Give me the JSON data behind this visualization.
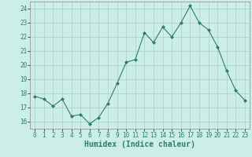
{
  "x": [
    0,
    1,
    2,
    3,
    4,
    5,
    6,
    7,
    8,
    9,
    10,
    11,
    12,
    13,
    14,
    15,
    16,
    17,
    18,
    19,
    20,
    21,
    22,
    23
  ],
  "y": [
    17.8,
    17.6,
    17.1,
    17.6,
    16.4,
    16.5,
    15.85,
    16.3,
    17.3,
    18.7,
    20.2,
    20.4,
    22.3,
    21.6,
    22.7,
    22.0,
    23.0,
    24.2,
    23.0,
    22.5,
    21.3,
    19.6,
    18.2,
    17.5
  ],
  "line_color": "#2e7d6e",
  "marker": "D",
  "marker_size": 2.0,
  "bg_color": "#cceee8",
  "grid_color": "#aacccc",
  "xlabel": "Humidex (Indice chaleur)",
  "ylim": [
    15.5,
    24.5
  ],
  "xlim": [
    -0.5,
    23.5
  ],
  "yticks": [
    16,
    17,
    18,
    19,
    20,
    21,
    22,
    23,
    24
  ],
  "xticks": [
    0,
    1,
    2,
    3,
    4,
    5,
    6,
    7,
    8,
    9,
    10,
    11,
    12,
    13,
    14,
    15,
    16,
    17,
    18,
    19,
    20,
    21,
    22,
    23
  ],
  "tick_labelsize": 5.5,
  "xlabel_fontsize": 7.0,
  "spine_color": "#888888",
  "linewidth": 0.8
}
